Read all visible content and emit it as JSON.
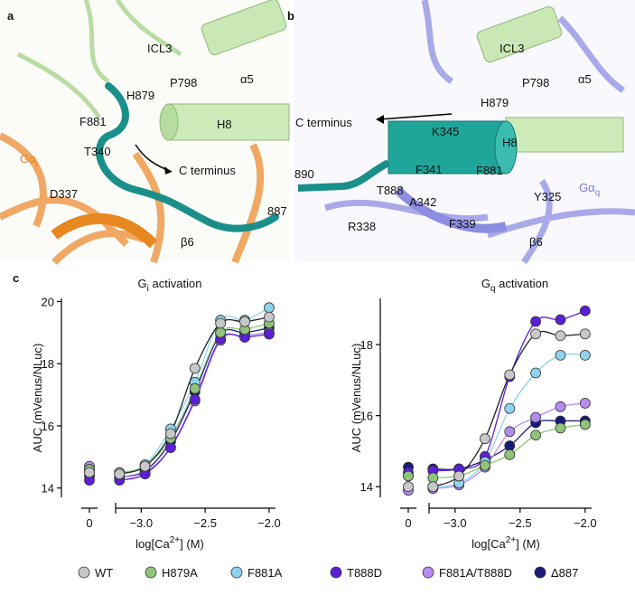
{
  "panels": {
    "a": {
      "letter": "a",
      "labels": [
        "ICL3",
        "P798",
        "α5",
        "H879",
        "F881",
        "H8",
        "T340",
        "C terminus",
        "D337",
        "887",
        "β6"
      ],
      "g_label": {
        "main": "Gα",
        "sub": "i"
      }
    },
    "b": {
      "letter": "b",
      "labels": [
        "ICL3",
        "P798",
        "α5",
        "H879",
        "C terminus",
        "K345",
        "H8",
        "890",
        "F341",
        "F881",
        "T888",
        "A342",
        "Y325",
        "R338",
        "F339",
        "β6"
      ],
      "g_label": {
        "main": "Gα",
        "sub": "q"
      }
    },
    "c": {
      "letter": "c"
    }
  },
  "chart_data": [
    {
      "type": "line",
      "title_parts": [
        "G",
        "i",
        " activation"
      ],
      "ylabel": "AUC (mVenus/NLuc)",
      "xlabel_parts": [
        "log[Ca",
        "2+",
        "] (M)"
      ],
      "x": [
        -3.17,
        -2.97,
        -2.77,
        -2.58,
        -2.38,
        -2.19,
        -2.0
      ],
      "zero_tick": 0,
      "xlim": [
        -3.2,
        -1.95
      ],
      "xticks": [
        {
          "value": -3.0,
          "label": "−3.0"
        },
        {
          "value": -2.5,
          "label": "−2.5"
        },
        {
          "value": -2.0,
          "label": "−2.0"
        }
      ],
      "ylim": [
        13.7,
        20.1
      ],
      "yticks": [
        14,
        16,
        18,
        20
      ],
      "series": [
        {
          "name": "WT",
          "color": "#c8c8c8",
          "zero_value": 14.5,
          "values": [
            14.45,
            14.7,
            15.75,
            17.85,
            19.3,
            19.35,
            19.5
          ]
        },
        {
          "name": "H879A",
          "color": "#8fc47a",
          "zero_value": 14.6,
          "values": [
            14.5,
            14.7,
            15.6,
            17.2,
            19.0,
            19.1,
            19.3
          ]
        },
        {
          "name": "F881A",
          "color": "#8fd3ef",
          "zero_value": 14.55,
          "values": [
            14.45,
            14.75,
            15.9,
            17.4,
            19.4,
            19.4,
            19.8
          ]
        },
        {
          "name": "T888D",
          "color": "#5a1fd6",
          "zero_value": 14.25,
          "values": [
            14.25,
            14.45,
            15.3,
            16.85,
            18.8,
            18.85,
            18.95
          ]
        },
        {
          "name": "F881A/T888D",
          "color": "#b48cf0",
          "zero_value": 14.7,
          "values": [
            14.35,
            14.5,
            15.3,
            16.8,
            18.75,
            18.9,
            19.0
          ]
        },
        {
          "name": "Δ887",
          "color": "#1a1a7a",
          "zero_value": 14.4,
          "values": [
            14.35,
            14.55,
            15.5,
            17.1,
            18.95,
            19.0,
            19.15
          ]
        }
      ]
    },
    {
      "type": "line",
      "title_parts": [
        "G",
        "q",
        " activation"
      ],
      "ylabel": "AUC (mVenus/NLuc)",
      "xlabel_parts": [
        "log[Ca",
        "2+",
        "] (M)"
      ],
      "x": [
        -3.17,
        -2.97,
        -2.77,
        -2.58,
        -2.38,
        -2.19,
        -2.0
      ],
      "zero_tick": 0,
      "xlim": [
        -3.2,
        -1.95
      ],
      "xticks": [
        {
          "value": -3.0,
          "label": "−3.0"
        },
        {
          "value": -2.5,
          "label": "−2.5"
        },
        {
          "value": -2.0,
          "label": "−2.0"
        }
      ],
      "ylim": [
        13.7,
        19.3
      ],
      "yticks": [
        14,
        16,
        18
      ],
      "series": [
        {
          "color": "#c8c8c8",
          "zero_value": 14.0,
          "values": [
            14.0,
            14.3,
            15.35,
            17.15,
            18.3,
            18.25,
            18.3
          ]
        },
        {
          "color": "#8fc47a",
          "zero_value": 14.3,
          "values": [
            14.25,
            14.3,
            14.6,
            14.9,
            15.45,
            15.65,
            15.75
          ]
        },
        {
          "color": "#8fd3ef",
          "zero_value": 14.3,
          "values": [
            14.0,
            14.1,
            14.7,
            16.2,
            17.2,
            17.7,
            17.7
          ]
        },
        {
          "color": "#5a1fd6",
          "zero_value": 14.4,
          "values": [
            14.45,
            14.5,
            14.85,
            17.1,
            18.65,
            18.7,
            18.95
          ]
        },
        {
          "color": "#b48cf0",
          "zero_value": 13.9,
          "values": [
            13.95,
            14.05,
            14.55,
            15.55,
            15.95,
            16.25,
            16.35
          ]
        },
        {
          "color": "#1a1a7a",
          "zero_value": 14.55,
          "values": [
            14.5,
            14.5,
            14.75,
            15.15,
            15.8,
            15.85,
            15.85
          ]
        }
      ]
    }
  ]
}
